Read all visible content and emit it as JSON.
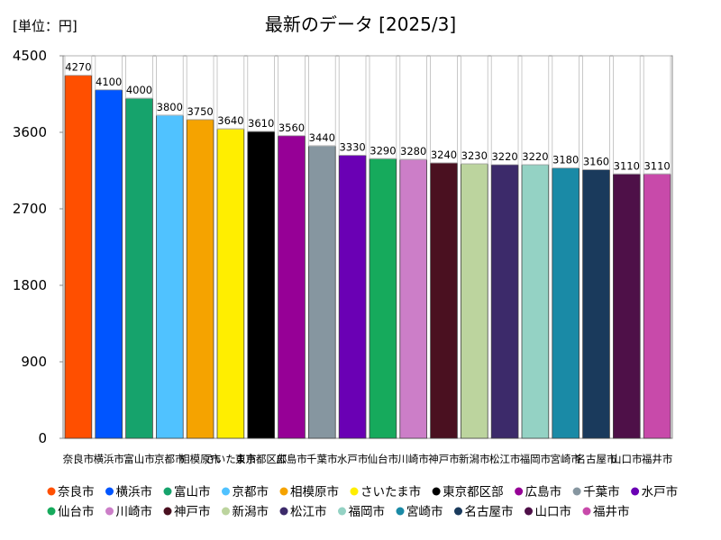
{
  "chart_data": {
    "type": "bar",
    "title": "最新のデータ [2025/3]",
    "unit_label": "[単位：円]",
    "xlabel": "",
    "ylabel": "",
    "ylim": [
      0,
      4500
    ],
    "yticks": [
      0,
      900,
      1800,
      2700,
      3600,
      4500
    ],
    "grid": false,
    "legend_position": "bottom",
    "categories": [
      "奈良市",
      "横浜市",
      "富山市",
      "京都市",
      "相模原市",
      "さいたま市",
      "東京都区部",
      "広島市",
      "千葉市",
      "水戸市",
      "仙台市",
      "川崎市",
      "神戸市",
      "新潟市",
      "松江市",
      "福岡市",
      "宮崎市",
      "名古屋市",
      "山口市",
      "福井市"
    ],
    "values": [
      4270,
      4100,
      4000,
      3800,
      3750,
      3640,
      3610,
      3560,
      3440,
      3330,
      3290,
      3280,
      3240,
      3230,
      3220,
      3220,
      3180,
      3160,
      3110,
      3110
    ],
    "colors": [
      "#ff4f00",
      "#0055ff",
      "#16a36c",
      "#50c2ff",
      "#f5a300",
      "#ffee00",
      "#000000",
      "#960096",
      "#8696a0",
      "#6a00b4",
      "#16aa5c",
      "#cc7ec8",
      "#4a1020",
      "#bcd49e",
      "#3c2a6a",
      "#94d2c4",
      "#1a8aa6",
      "#1a3a5c",
      "#4e1048",
      "#c84aaa"
    ]
  }
}
